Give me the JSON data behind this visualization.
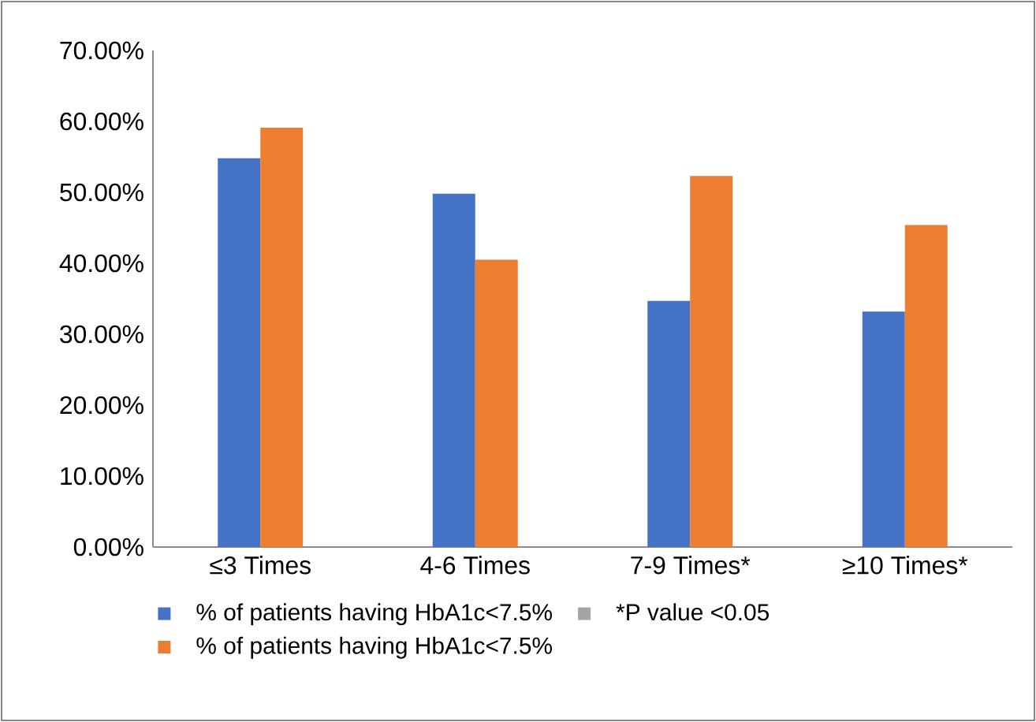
{
  "chart_data": {
    "type": "bar",
    "categories": [
      "≤3 Times",
      "4-6 Times",
      "7-9 Times*",
      "≥10 Times*"
    ],
    "series": [
      {
        "name": "% of patients having HbA1c<7.5%",
        "color": "#4472c4",
        "values": [
          54.8,
          49.8,
          34.7,
          33.2
        ]
      },
      {
        "name": "*P value <0.05",
        "color": "#a5a5a5",
        "values": [
          null,
          null,
          null,
          null
        ]
      },
      {
        "name": "% of patients having HbA1c<7.5%",
        "color": "#ed7d31",
        "values": [
          59.1,
          40.5,
          52.3,
          45.4
        ]
      }
    ],
    "ylim": [
      0,
      70
    ],
    "yticks": [
      {
        "value": 0,
        "label": "0.00%"
      },
      {
        "value": 10,
        "label": "10.00%"
      },
      {
        "value": 20,
        "label": "20.00%"
      },
      {
        "value": 30,
        "label": "30.00%"
      },
      {
        "value": 40,
        "label": "40.00%"
      },
      {
        "value": 50,
        "label": "50.00%"
      },
      {
        "value": 60,
        "label": "60.00%"
      },
      {
        "value": 70,
        "label": "70.00%"
      }
    ],
    "grid": false,
    "legend": "bottom"
  }
}
